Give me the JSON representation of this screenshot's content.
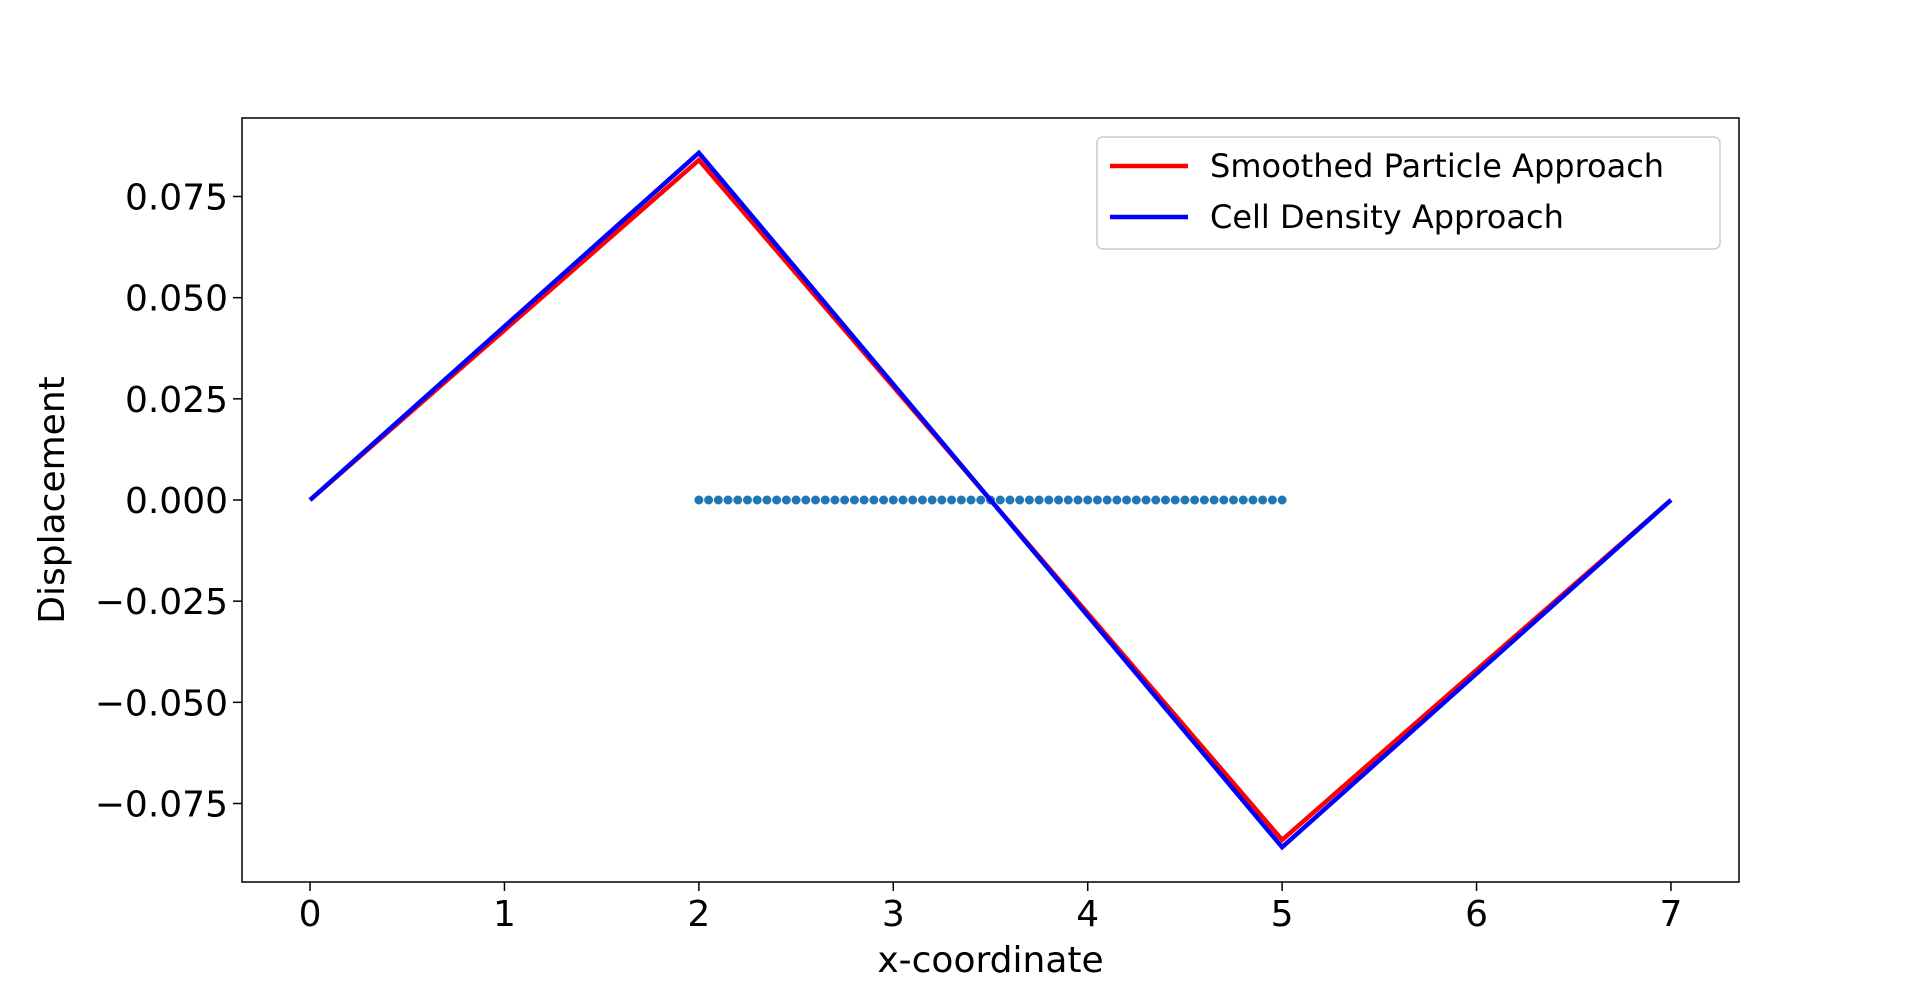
{
  "chart_data": {
    "type": "line",
    "xlabel": "x-coordinate",
    "ylabel": "Displacement",
    "xlim": [
      -0.35,
      7.35
    ],
    "ylim": [
      -0.0944,
      0.0944
    ],
    "x_ticks": [
      0,
      1,
      2,
      3,
      4,
      5,
      6,
      7
    ],
    "x_tick_labels": [
      "0",
      "1",
      "2",
      "3",
      "4",
      "5",
      "6",
      "7"
    ],
    "y_ticks": [
      0.075,
      0.05,
      0.025,
      0.0,
      -0.025,
      -0.05,
      -0.075
    ],
    "y_tick_labels": [
      "0.075",
      "0.050",
      "0.025",
      "0.000",
      "−0.025",
      "−0.050",
      "−0.075"
    ],
    "grid": false,
    "legend_position": "top-right",
    "series": [
      {
        "name": "Smoothed Particle Approach",
        "color": "#ff0000",
        "x": [
          0,
          2,
          5,
          7
        ],
        "y": [
          0.0,
          0.084,
          -0.084,
          0.0
        ]
      },
      {
        "name": "Cell Density Approach",
        "color": "#0000ff",
        "x": [
          0,
          2,
          5,
          7
        ],
        "y": [
          0.0,
          0.0858,
          -0.0858,
          0.0
        ]
      }
    ],
    "markers": {
      "color": "#1f77b4",
      "x_start": 2,
      "x_end": 5,
      "count": 61,
      "y": 0.0
    }
  }
}
